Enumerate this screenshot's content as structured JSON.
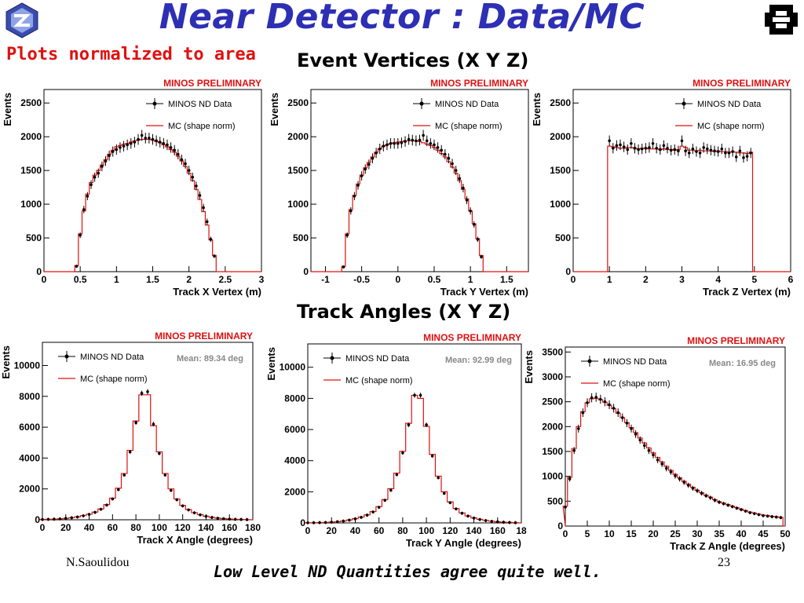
{
  "slide": {
    "title": "Near Detector : Data/MC",
    "subtitle": "Plots normalized to area",
    "vertices_heading": "Event Vertices (X Y Z)",
    "angles_heading": "Track Angles (X Y Z)",
    "author": "N.Saoulidou",
    "page_number": "23",
    "conclusion": "Low Level ND Quantities agree quite well."
  },
  "colors": {
    "title": "#2d2fb4",
    "subtitle": "#e01010",
    "mc": "#e01010",
    "data": "#000000",
    "preliminary": "#e01010",
    "mean": "#888888"
  },
  "icons": {
    "left_logo": "minos-logo-icon",
    "right_logo": "fermilab-logo-icon"
  },
  "chart_data": [
    {
      "type": "line",
      "banner": "MINOS PRELIMINARY",
      "legend": [
        "MINOS ND Data",
        "MC (shape norm)"
      ],
      "xlabel": "Track X Vertex (m)",
      "ylabel": "Events",
      "xlim": [
        0,
        3
      ],
      "ylim": [
        0,
        2700
      ],
      "xticks": [
        "0",
        "0.5",
        "1",
        "1.5",
        "2",
        "2.5",
        "3"
      ],
      "yticks": [
        "0",
        "500",
        "1000",
        "1500",
        "2000",
        "2500"
      ],
      "x": [
        0.45,
        0.5,
        0.55,
        0.6,
        0.65,
        0.7,
        0.75,
        0.8,
        0.85,
        0.9,
        0.95,
        1.0,
        1.05,
        1.1,
        1.15,
        1.2,
        1.25,
        1.3,
        1.35,
        1.4,
        1.45,
        1.5,
        1.55,
        1.6,
        1.65,
        1.7,
        1.75,
        1.8,
        1.85,
        1.9,
        1.95,
        2.0,
        2.05,
        2.1,
        2.15,
        2.2,
        2.25,
        2.3,
        2.35,
        2.4,
        2.45,
        2.5
      ],
      "series": [
        {
          "name": "MINOS ND Data",
          "values": [
            80,
            540,
            920,
            1120,
            1290,
            1400,
            1460,
            1560,
            1640,
            1720,
            1780,
            1810,
            1840,
            1860,
            1880,
            1900,
            1920,
            1960,
            2020,
            1980,
            1980,
            1960,
            1940,
            1920,
            1900,
            1880,
            1840,
            1800,
            1740,
            1660,
            1600,
            1500,
            1400,
            1270,
            1130,
            950,
            740,
            480,
            230,
            0,
            0,
            0
          ]
        },
        {
          "name": "MC (shape norm)",
          "values": [
            90,
            560,
            900,
            1150,
            1320,
            1430,
            1500,
            1580,
            1660,
            1740,
            1800,
            1850,
            1870,
            1890,
            1900,
            1920,
            1940,
            1950,
            1960,
            1960,
            1960,
            1950,
            1930,
            1910,
            1880,
            1850,
            1810,
            1770,
            1710,
            1640,
            1560,
            1460,
            1350,
            1220,
            1070,
            890,
            690,
            470,
            240,
            0,
            0,
            0
          ]
        }
      ]
    },
    {
      "type": "line",
      "banner": "MINOS PRELIMINARY",
      "legend": [
        "MINOS ND Data",
        "MC (shape norm)"
      ],
      "xlabel": "Track Y Vertex (m)",
      "ylabel": "Events",
      "xlim": [
        -1.2,
        1.8
      ],
      "ylim": [
        0,
        2700
      ],
      "xticks": [
        "-1",
        "-0.5",
        "0",
        "0.5",
        "1",
        "1.5"
      ],
      "yticks": [
        "0",
        "500",
        "1000",
        "1500",
        "2000",
        "2500"
      ],
      "x": [
        -0.75,
        -0.7,
        -0.65,
        -0.6,
        -0.55,
        -0.5,
        -0.45,
        -0.4,
        -0.35,
        -0.3,
        -0.25,
        -0.2,
        -0.15,
        -0.1,
        -0.05,
        0.0,
        0.05,
        0.1,
        0.15,
        0.2,
        0.25,
        0.3,
        0.35,
        0.4,
        0.45,
        0.5,
        0.55,
        0.6,
        0.65,
        0.7,
        0.75,
        0.8,
        0.85,
        0.9,
        0.95,
        1.0,
        1.05,
        1.1,
        1.15,
        1.2
      ],
      "series": [
        {
          "name": "MINOS ND Data",
          "values": [
            70,
            540,
            900,
            1120,
            1280,
            1420,
            1520,
            1590,
            1680,
            1760,
            1820,
            1860,
            1880,
            1900,
            1900,
            1900,
            1910,
            1930,
            1960,
            1950,
            1940,
            1950,
            2020,
            1940,
            1900,
            1880,
            1840,
            1800,
            1740,
            1680,
            1600,
            1500,
            1380,
            1240,
            1060,
            900,
            700,
            480,
            220,
            0
          ]
        },
        {
          "name": "MC (shape norm)",
          "values": [
            80,
            560,
            920,
            1130,
            1300,
            1430,
            1540,
            1620,
            1700,
            1770,
            1820,
            1860,
            1880,
            1900,
            1910,
            1920,
            1930,
            1940,
            1940,
            1940,
            1940,
            1930,
            1910,
            1890,
            1870,
            1840,
            1800,
            1750,
            1700,
            1630,
            1550,
            1460,
            1350,
            1220,
            1080,
            900,
            710,
            490,
            240,
            0
          ]
        }
      ]
    },
    {
      "type": "line",
      "banner": "MINOS PRELIMINARY",
      "legend": [
        "MINOS ND Data",
        "MC (shape norm)"
      ],
      "xlabel": "Track Z Vertex (m)",
      "ylabel": "Events",
      "xlim": [
        0,
        6
      ],
      "ylim": [
        0,
        2700
      ],
      "xticks": [
        "0",
        "1",
        "2",
        "3",
        "4",
        "5",
        "6"
      ],
      "yticks": [
        "0",
        "500",
        "1000",
        "1500",
        "2000",
        "2500"
      ],
      "x": [
        1.0,
        1.1,
        1.2,
        1.3,
        1.4,
        1.5,
        1.6,
        1.7,
        1.8,
        1.9,
        2.0,
        2.1,
        2.2,
        2.3,
        2.4,
        2.5,
        2.6,
        2.7,
        2.8,
        2.9,
        3.0,
        3.1,
        3.2,
        3.3,
        3.4,
        3.5,
        3.6,
        3.7,
        3.8,
        3.9,
        4.0,
        4.1,
        4.2,
        4.3,
        4.4,
        4.5,
        4.6,
        4.7,
        4.8,
        4.9
      ],
      "series": [
        {
          "name": "MINOS ND Data",
          "values": [
            1940,
            1830,
            1870,
            1880,
            1850,
            1810,
            1900,
            1830,
            1810,
            1820,
            1830,
            1840,
            1900,
            1830,
            1810,
            1870,
            1830,
            1800,
            1810,
            1790,
            1940,
            1790,
            1760,
            1820,
            1780,
            1760,
            1840,
            1820,
            1800,
            1790,
            1780,
            1820,
            1760,
            1760,
            1780,
            1700,
            1790,
            1690,
            1710,
            1760
          ]
        },
        {
          "name": "MC (shape norm)",
          "values": [
            1860,
            1850,
            1840,
            1830,
            1830,
            1840,
            1840,
            1830,
            1820,
            1830,
            1830,
            1820,
            1820,
            1820,
            1810,
            1820,
            1810,
            1810,
            1800,
            1810,
            1860,
            1840,
            1800,
            1800,
            1790,
            1800,
            1790,
            1790,
            1790,
            1780,
            1790,
            1780,
            1780,
            1770,
            1780,
            1770,
            1760,
            1760,
            1750,
            1770
          ]
        }
      ]
    },
    {
      "type": "line",
      "banner": "MINOS PRELIMINARY",
      "legend": [
        "MINOS ND Data",
        "MC (shape norm)"
      ],
      "stat": "Mean: 89.34 deg",
      "xlabel": "Track X Angle (degrees)",
      "ylabel": "Events",
      "xlim": [
        0,
        180
      ],
      "ylim": [
        0,
        11500
      ],
      "xticks": [
        "0",
        "20",
        "40",
        "60",
        "80",
        "100",
        "120",
        "140",
        "160",
        "180"
      ],
      "yticks": [
        "0",
        "2000",
        "4000",
        "6000",
        "8000",
        "10000"
      ],
      "x": [
        0,
        5,
        10,
        15,
        20,
        25,
        30,
        35,
        40,
        45,
        50,
        55,
        60,
        65,
        70,
        75,
        80,
        85,
        90,
        95,
        100,
        105,
        110,
        115,
        120,
        125,
        130,
        135,
        140,
        145,
        150,
        155,
        160,
        165,
        170,
        175
      ],
      "series": [
        {
          "name": "MINOS ND Data",
          "values": [
            20,
            30,
            40,
            60,
            90,
            130,
            180,
            260,
            350,
            480,
            680,
            950,
            1350,
            1950,
            2900,
            4400,
            6300,
            8200,
            8300,
            6200,
            4300,
            2900,
            1900,
            1300,
            900,
            640,
            450,
            320,
            220,
            150,
            100,
            70,
            45,
            30,
            20,
            10
          ]
        },
        {
          "name": "MC (shape norm)",
          "values": [
            20,
            30,
            40,
            60,
            90,
            130,
            190,
            270,
            360,
            500,
            700,
            980,
            1400,
            2050,
            3000,
            4500,
            6400,
            8100,
            8100,
            6100,
            4400,
            3000,
            2000,
            1350,
            930,
            660,
            460,
            330,
            230,
            160,
            110,
            75,
            50,
            30,
            20,
            10
          ]
        }
      ]
    },
    {
      "type": "line",
      "banner": "MINOS PRELIMINARY",
      "legend": [
        "MINOS ND Data",
        "MC (shape norm)"
      ],
      "stat": "Mean: 92.99 deg",
      "xlabel": "Track Y Angle (degrees)",
      "ylabel": "Events",
      "xlim": [
        0,
        180
      ],
      "ylim": [
        0,
        11500
      ],
      "xticks": [
        "0",
        "20",
        "40",
        "60",
        "80",
        "100",
        "120",
        "140",
        "160",
        "18"
      ],
      "yticks": [
        "0",
        "2000",
        "4000",
        "6000",
        "8000",
        "10000"
      ],
      "x": [
        0,
        5,
        10,
        15,
        20,
        25,
        30,
        35,
        40,
        45,
        50,
        55,
        60,
        65,
        70,
        75,
        80,
        85,
        90,
        95,
        100,
        105,
        110,
        115,
        120,
        125,
        130,
        135,
        140,
        145,
        150,
        155,
        160,
        165,
        170,
        175
      ],
      "series": [
        {
          "name": "MINOS ND Data",
          "values": [
            10,
            15,
            20,
            30,
            50,
            80,
            120,
            180,
            260,
            360,
            500,
            700,
            1000,
            1450,
            2100,
            3100,
            4500,
            6300,
            8200,
            8200,
            6300,
            4300,
            2900,
            1900,
            1300,
            900,
            620,
            440,
            310,
            220,
            150,
            100,
            70,
            45,
            30,
            15
          ]
        },
        {
          "name": "MC (shape norm)",
          "values": [
            10,
            15,
            20,
            30,
            50,
            80,
            120,
            190,
            270,
            380,
            520,
            730,
            1050,
            1500,
            2200,
            3200,
            4600,
            6400,
            8200,
            8000,
            6200,
            4400,
            3000,
            2000,
            1350,
            920,
            640,
            450,
            320,
            230,
            160,
            110,
            70,
            45,
            30,
            15
          ]
        }
      ]
    },
    {
      "type": "line",
      "banner": "MINOS PRELIMINARY",
      "legend": [
        "MINOS ND Data",
        "MC (shape norm)"
      ],
      "stat": "Mean: 16.95 deg",
      "xlabel": "Track Z Angle (degrees)",
      "ylabel": "Events",
      "xlim": [
        0,
        50
      ],
      "ylim": [
        0,
        3600
      ],
      "xticks": [
        "0",
        "5",
        "10",
        "15",
        "20",
        "25",
        "30",
        "35",
        "40",
        "45",
        "50"
      ],
      "yticks": [
        "0",
        "500",
        "1000",
        "1500",
        "2000",
        "2500",
        "3000",
        "3500"
      ],
      "x": [
        0,
        1,
        2,
        3,
        4,
        5,
        6,
        7,
        8,
        9,
        10,
        11,
        12,
        13,
        14,
        15,
        16,
        17,
        18,
        19,
        20,
        21,
        22,
        23,
        24,
        25,
        26,
        27,
        28,
        29,
        30,
        31,
        32,
        33,
        34,
        35,
        36,
        37,
        38,
        39,
        40,
        41,
        42,
        43,
        44,
        45,
        46,
        47,
        48,
        49
      ],
      "series": [
        {
          "name": "MINOS ND Data",
          "values": [
            380,
            950,
            1520,
            1960,
            2280,
            2480,
            2580,
            2590,
            2550,
            2500,
            2440,
            2370,
            2280,
            2180,
            2070,
            1960,
            1850,
            1730,
            1620,
            1520,
            1430,
            1330,
            1250,
            1160,
            1090,
            1010,
            950,
            880,
            820,
            760,
            710,
            660,
            610,
            570,
            520,
            480,
            450,
            420,
            390,
            360,
            330,
            300,
            270,
            250,
            230,
            210,
            200,
            190,
            180,
            170
          ]
        },
        {
          "name": "MC (shape norm)",
          "values": [
            400,
            980,
            1560,
            2000,
            2300,
            2480,
            2560,
            2570,
            2540,
            2490,
            2430,
            2360,
            2270,
            2180,
            2080,
            1980,
            1880,
            1770,
            1670,
            1570,
            1470,
            1380,
            1290,
            1200,
            1120,
            1040,
            970,
            900,
            840,
            780,
            720,
            670,
            620,
            580,
            530,
            490,
            460,
            430,
            400,
            370,
            340,
            310,
            280,
            260,
            240,
            220,
            210,
            195,
            185,
            175
          ]
        }
      ]
    }
  ]
}
